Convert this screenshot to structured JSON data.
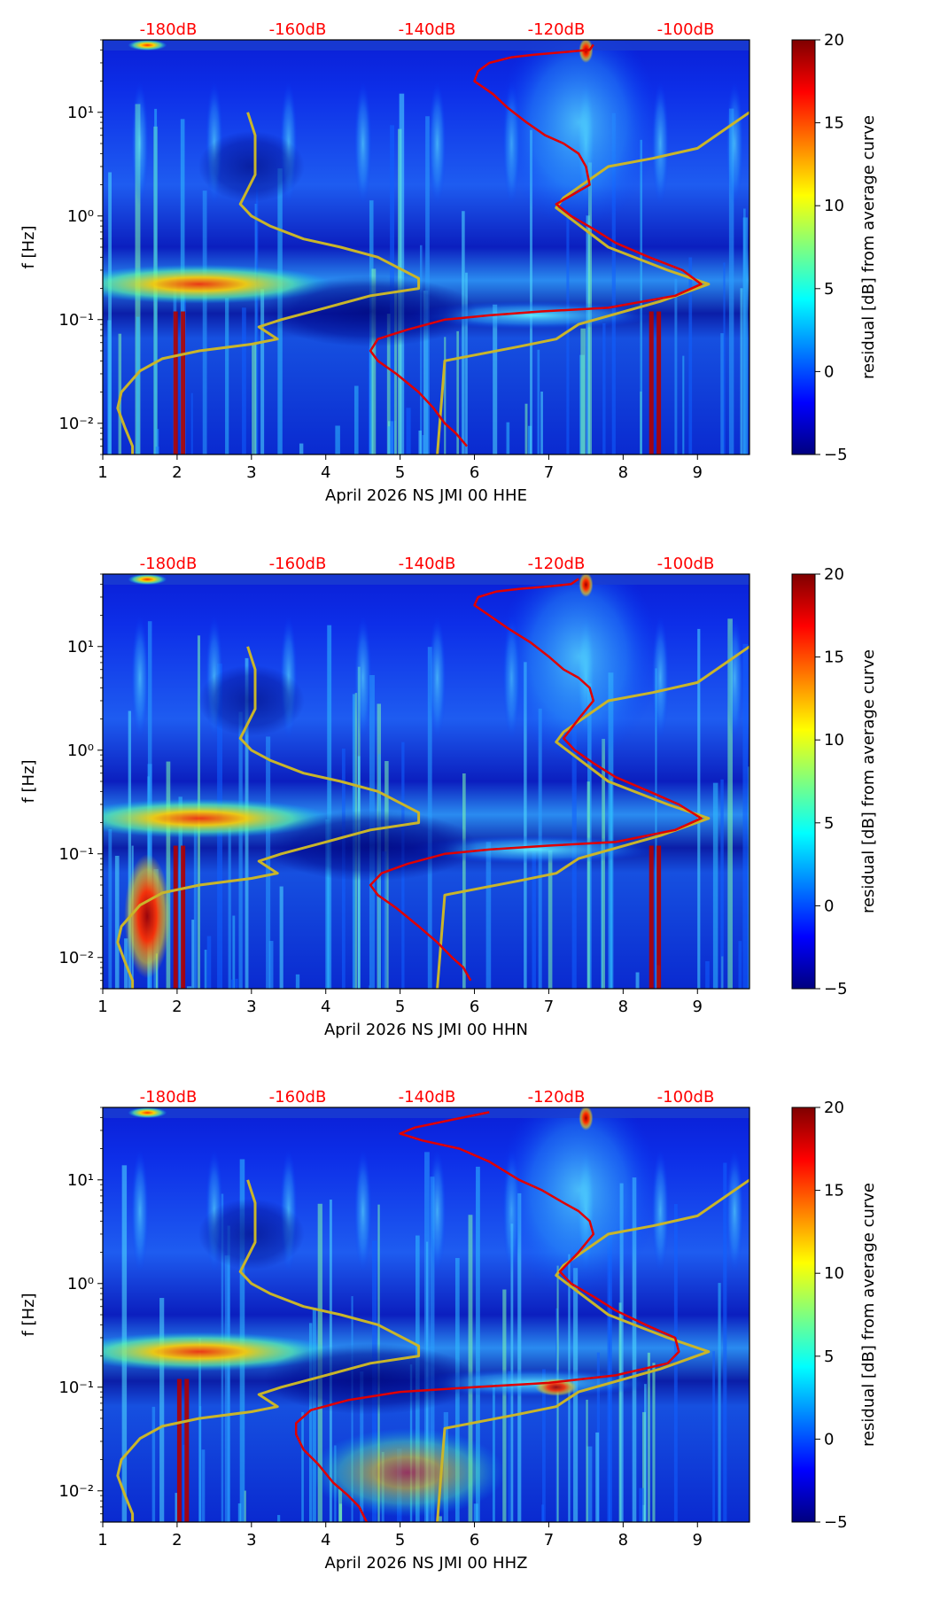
{
  "figure": {
    "colorbar_label": "residual [dB] from average curve",
    "colorbar_ticks": [
      "20",
      "15",
      "10",
      "5",
      "0",
      "−5"
    ],
    "colorbar_values": [
      20,
      15,
      10,
      5,
      0,
      -5
    ],
    "colormap": [
      "#00007f",
      "#0000ff",
      "#007fff",
      "#00ffff",
      "#7fff7f",
      "#ffff00",
      "#ff7f00",
      "#ff0000",
      "#7f0000"
    ],
    "x_ticks": [
      "1",
      "2",
      "3",
      "4",
      "5",
      "6",
      "7",
      "8",
      "9"
    ],
    "y_ticks": [
      "10¹",
      "10⁰",
      "10⁻¹",
      "10⁻²"
    ],
    "y_label": "f [Hz]",
    "db_scale": [
      "-180dB",
      "-160dB",
      "-140dB",
      "-120dB",
      "-100dB"
    ],
    "curve_colors": {
      "reference": "#c9b52a",
      "average": "#e00000"
    }
  },
  "chart_data": [
    {
      "type": "heatmap",
      "title": "",
      "xlabel": "April 2026 NS JMI 00 HHE",
      "ylabel": "f [Hz]",
      "xlim": [
        1,
        9.7
      ],
      "ylim_hz": [
        0.005,
        50
      ],
      "clim": [
        -5,
        20
      ],
      "reference_curve": {
        "x": [
          2.95,
          3.05,
          3.05,
          2.85,
          3.0,
          3.25,
          3.7,
          4.2,
          4.7,
          5.25,
          5.25,
          4.6,
          4.0,
          3.4,
          3.1,
          3.35,
          3.0,
          2.3,
          1.8,
          1.5,
          1.25,
          1.2,
          1.3,
          1.4,
          1.4
        ],
        "f_hz": [
          10,
          6,
          2.5,
          1.3,
          1.0,
          0.8,
          0.6,
          0.5,
          0.4,
          0.25,
          0.2,
          0.17,
          0.13,
          0.1,
          0.085,
          0.065,
          0.058,
          0.05,
          0.042,
          0.032,
          0.02,
          0.014,
          0.009,
          0.006,
          0.005
        ]
      },
      "average_curve": {
        "x": [
          7.6,
          7.55,
          7.2,
          6.8,
          6.5,
          6.2,
          6.05,
          6.0,
          6.25,
          6.45,
          6.7,
          6.95,
          7.2,
          7.4,
          7.5,
          7.55,
          7.1,
          7.3,
          7.6,
          7.9,
          8.35,
          8.8,
          9.05,
          8.7,
          7.8,
          6.9,
          6.2,
          5.6,
          5.1,
          4.7,
          4.6,
          4.7,
          4.95,
          5.25,
          5.45,
          5.6,
          5.75,
          5.9
        ],
        "f_hz": [
          45,
          40,
          38,
          36,
          34,
          30,
          25,
          20,
          15,
          11,
          8,
          6,
          5,
          4,
          3,
          2,
          1.3,
          1.0,
          0.75,
          0.55,
          0.4,
          0.3,
          0.22,
          0.17,
          0.13,
          0.12,
          0.11,
          0.1,
          0.08,
          0.065,
          0.05,
          0.04,
          0.03,
          0.02,
          0.014,
          0.01,
          0.008,
          0.006
        ]
      },
      "reference_curve_upper": {
        "x": [
          5.5,
          5.6,
          6.6,
          7.1,
          7.4,
          8.5,
          9.15,
          8.6,
          7.8,
          7.1,
          7.2,
          7.8,
          8.4,
          9.0,
          9.7
        ],
        "f_hz": [
          0.005,
          0.04,
          0.055,
          0.065,
          0.09,
          0.15,
          0.22,
          0.3,
          0.5,
          1.2,
          1.5,
          3,
          3.6,
          4.5,
          10
        ]
      }
    },
    {
      "type": "heatmap",
      "title": "",
      "xlabel": "April 2026 NS JMI 00 HHN",
      "ylabel": "f [Hz]",
      "xlim": [
        1,
        9.7
      ],
      "ylim_hz": [
        0.005,
        50
      ],
      "clim": [
        -5,
        20
      ],
      "reference_curve": {
        "x": [
          2.95,
          3.05,
          3.05,
          2.85,
          3.0,
          3.25,
          3.7,
          4.2,
          4.7,
          5.25,
          5.25,
          4.6,
          4.0,
          3.4,
          3.1,
          3.35,
          3.0,
          2.3,
          1.8,
          1.5,
          1.25,
          1.2,
          1.3,
          1.4,
          1.4
        ],
        "f_hz": [
          10,
          6,
          2.5,
          1.3,
          1.0,
          0.8,
          0.6,
          0.5,
          0.4,
          0.25,
          0.2,
          0.17,
          0.13,
          0.1,
          0.085,
          0.065,
          0.058,
          0.05,
          0.042,
          0.032,
          0.02,
          0.014,
          0.009,
          0.006,
          0.005
        ]
      },
      "average_curve": {
        "x": [
          7.4,
          7.3,
          7.0,
          6.6,
          6.3,
          6.05,
          6.0,
          6.2,
          6.45,
          6.75,
          7.0,
          7.2,
          7.4,
          7.55,
          7.6,
          7.4,
          7.2,
          7.35,
          7.6,
          7.9,
          8.35,
          8.75,
          9.05,
          8.7,
          7.9,
          7.0,
          6.2,
          5.6,
          5.1,
          4.75,
          4.6,
          4.7,
          4.95,
          5.25,
          5.5,
          5.7,
          5.85,
          5.95
        ],
        "f_hz": [
          45,
          40,
          38,
          36,
          34,
          30,
          25,
          20,
          15,
          11,
          8,
          6,
          5,
          4,
          3,
          2,
          1.3,
          1.0,
          0.75,
          0.55,
          0.4,
          0.3,
          0.22,
          0.17,
          0.13,
          0.12,
          0.11,
          0.1,
          0.08,
          0.065,
          0.05,
          0.04,
          0.03,
          0.02,
          0.014,
          0.01,
          0.008,
          0.006
        ]
      },
      "reference_curve_upper": {
        "x": [
          5.5,
          5.6,
          6.6,
          7.1,
          7.4,
          8.5,
          9.15,
          8.6,
          7.8,
          7.1,
          7.2,
          7.8,
          8.4,
          9.0,
          9.7
        ],
        "f_hz": [
          0.005,
          0.04,
          0.055,
          0.065,
          0.09,
          0.15,
          0.22,
          0.3,
          0.5,
          1.2,
          1.5,
          3,
          3.6,
          4.5,
          10
        ]
      }
    },
    {
      "type": "heatmap",
      "title": "",
      "xlabel": "April 2026 NS JMI 00 HHZ",
      "ylabel": "f [Hz]",
      "xlim": [
        1,
        9.7
      ],
      "ylim_hz": [
        0.005,
        50
      ],
      "clim": [
        -5,
        20
      ],
      "reference_curve": {
        "x": [
          2.95,
          3.05,
          3.05,
          2.85,
          3.0,
          3.25,
          3.7,
          4.2,
          4.7,
          5.25,
          5.25,
          4.6,
          4.0,
          3.4,
          3.1,
          3.35,
          3.0,
          2.3,
          1.8,
          1.5,
          1.25,
          1.2,
          1.3,
          1.4,
          1.4
        ],
        "f_hz": [
          10,
          6,
          2.5,
          1.3,
          1.0,
          0.8,
          0.6,
          0.5,
          0.4,
          0.25,
          0.2,
          0.17,
          0.13,
          0.1,
          0.085,
          0.065,
          0.058,
          0.05,
          0.042,
          0.032,
          0.02,
          0.014,
          0.009,
          0.006,
          0.005
        ]
      },
      "average_curve": {
        "x": [
          6.2,
          5.7,
          5.2,
          5.0,
          5.3,
          5.8,
          6.2,
          6.6,
          6.9,
          7.2,
          7.4,
          7.55,
          7.6,
          7.4,
          7.15,
          7.3,
          7.6,
          7.9,
          8.3,
          8.7,
          8.75,
          8.6,
          7.9,
          7.0,
          6.0,
          5.0,
          4.3,
          3.8,
          3.6,
          3.6,
          3.7,
          3.9,
          4.1,
          4.3,
          4.45,
          4.55
        ],
        "f_hz": [
          45,
          38,
          32,
          28,
          24,
          20,
          15,
          10,
          8,
          6,
          5,
          4,
          3,
          2,
          1.3,
          1.0,
          0.75,
          0.55,
          0.4,
          0.3,
          0.22,
          0.17,
          0.13,
          0.11,
          0.1,
          0.09,
          0.075,
          0.06,
          0.045,
          0.035,
          0.025,
          0.018,
          0.012,
          0.009,
          0.007,
          0.005
        ]
      },
      "reference_curve_upper": {
        "x": [
          5.5,
          5.6,
          6.6,
          7.1,
          7.4,
          8.5,
          9.15,
          8.6,
          7.8,
          7.1,
          7.2,
          7.8,
          8.4,
          9.0,
          9.7
        ],
        "f_hz": [
          0.005,
          0.04,
          0.055,
          0.065,
          0.09,
          0.15,
          0.22,
          0.3,
          0.5,
          1.2,
          1.5,
          3,
          3.6,
          4.5,
          10
        ]
      }
    }
  ]
}
